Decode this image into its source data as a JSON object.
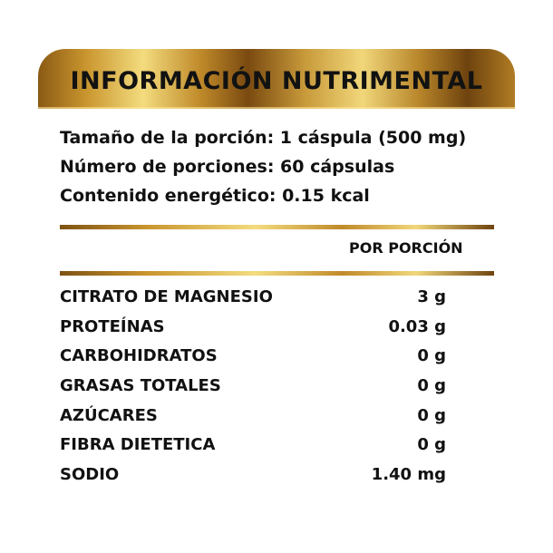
{
  "header": {
    "title": "INFORMACIÓN NUTRIMENTAL"
  },
  "info": [
    "Tamaño de la porción: 1 cáspula (500 mg)",
    "Número de porciones: 60 cápsulas",
    "Contenido energético: 0.15 kcal"
  ],
  "table": {
    "column_header": "POR PORCIÓN",
    "rows": [
      {
        "name": "CITRATO DE MAGNESIO",
        "value": "3 g"
      },
      {
        "name": "PROTEÍNAS",
        "value": "0.03 g"
      },
      {
        "name": "CARBOHIDRATOS",
        "value": "0 g"
      },
      {
        "name": "GRASAS TOTALES",
        "value": "0 g"
      },
      {
        "name": "AZÚCARES",
        "value": "0 g"
      },
      {
        "name": "FIBRA DIETETICA",
        "value": "0 g"
      },
      {
        "name": "SODIO",
        "value": "1.40 mg"
      }
    ]
  },
  "colors": {
    "gold_dark": "#7a4a10",
    "gold_light": "#f3dc7e",
    "text": "#111111"
  }
}
